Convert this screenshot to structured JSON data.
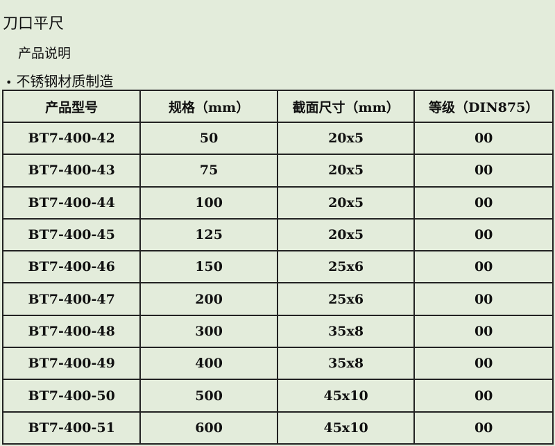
{
  "title": "刀口平尺",
  "subtitle": "产品说明",
  "bullet": "不锈钢材质制造",
  "table": {
    "headers": [
      "产品型号",
      "规格（mm）",
      "截面尺寸（mm）",
      "等级（DIN875）"
    ],
    "rows": [
      [
        "BT7-400-42",
        "50",
        "20x5",
        "00"
      ],
      [
        "BT7-400-43",
        "75",
        "20x5",
        "00"
      ],
      [
        "BT7-400-44",
        "100",
        "20x5",
        "00"
      ],
      [
        "BT7-400-45",
        "125",
        "20x5",
        "00"
      ],
      [
        "BT7-400-46",
        "150",
        "25x6",
        "00"
      ],
      [
        "BT7-400-47",
        "200",
        "25x6",
        "00"
      ],
      [
        "BT7-400-48",
        "300",
        "35x8",
        "00"
      ],
      [
        "BT7-400-49",
        "400",
        "35x8",
        "00"
      ],
      [
        "BT7-400-50",
        "500",
        "45x10",
        "00"
      ],
      [
        "BT7-400-51",
        "600",
        "45x10",
        "00"
      ]
    ]
  },
  "colors": {
    "background": "#e3ecdb",
    "border": "#222222"
  }
}
